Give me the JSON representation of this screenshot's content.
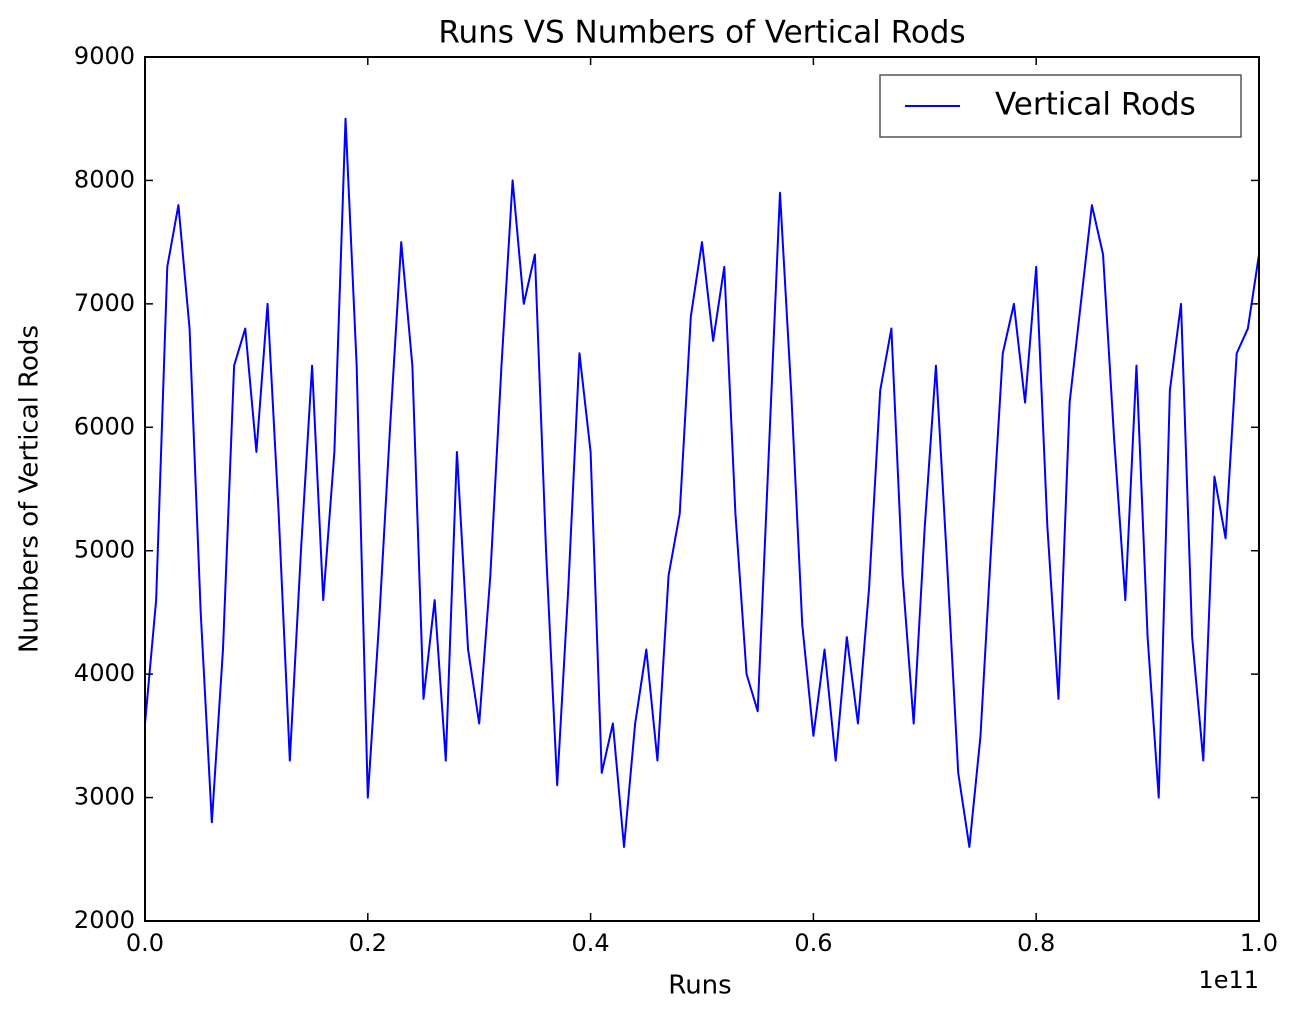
{
  "chart_data": {
    "type": "line",
    "title": "Runs VS Numbers of Vertical Rods",
    "xlabel": "Runs",
    "ylabel": "Numbers of Vertical Rods",
    "x_offset_label": "1e11",
    "x": [
      0,
      1000000000.0,
      2000000000.0,
      3000000000.0,
      4000000000.0,
      5000000000.0,
      6000000000.0,
      7000000000.0,
      8000000000.0,
      9000000000.0,
      10000000000.0,
      11000000000.0,
      12000000000.0,
      13000000000.0,
      14000000000.0,
      15000000000.0,
      16000000000.0,
      17000000000.0,
      18000000000.0,
      19000000000.0,
      20000000000.0,
      21000000000.0,
      22000000000.0,
      23000000000.0,
      24000000000.0,
      25000000000.0,
      26000000000.0,
      27000000000.0,
      28000000000.0,
      29000000000.0,
      30000000000.0,
      31000000000.0,
      32000000000.0,
      33000000000.0,
      34000000000.0,
      35000000000.0,
      36000000000.0,
      37000000000.0,
      38000000000.0,
      39000000000.0,
      40000000000.0,
      41000000000.0,
      42000000000.0,
      43000000000.0,
      44000000000.0,
      45000000000.0,
      46000000000.0,
      47000000000.0,
      48000000000.0,
      49000000000.0,
      50000000000.0,
      51000000000.0,
      52000000000.0,
      53000000000.0,
      54000000000.0,
      55000000000.0,
      56000000000.0,
      57000000000.0,
      58000000000.0,
      59000000000.0,
      60000000000.0,
      61000000000.0,
      62000000000.0,
      63000000000.0,
      64000000000.0,
      65000000000.0,
      66000000000.0,
      67000000000.0,
      68000000000.0,
      69000000000.0,
      70000000000.0,
      71000000000.0,
      72000000000.0,
      73000000000.0,
      74000000000.0,
      75000000000.0,
      76000000000.0,
      77000000000.0,
      78000000000.0,
      79000000000.0,
      80000000000.0,
      81000000000.0,
      82000000000.0,
      83000000000.0,
      84000000000.0,
      85000000000.0,
      86000000000.0,
      87000000000.0,
      88000000000.0,
      89000000000.0,
      90000000000.0,
      91000000000.0,
      92000000000.0,
      93000000000.0,
      94000000000.0,
      95000000000.0,
      96000000000.0,
      97000000000.0,
      98000000000.0,
      99000000000.0,
      100000000000.0
    ],
    "series": [
      {
        "name": "Vertical Rods",
        "color": "#0000ff",
        "values": [
          3600,
          4600,
          7300,
          7800,
          6800,
          4500,
          2800,
          4200,
          6500,
          6800,
          5800,
          7000,
          5300,
          3300,
          5000,
          6500,
          4600,
          5800,
          8500,
          6500,
          3000,
          4400,
          6000,
          7500,
          6500,
          3800,
          4600,
          3300,
          5800,
          4200,
          3600,
          4800,
          6500,
          8000,
          7000,
          7400,
          5000,
          3100,
          4700,
          6600,
          5800,
          3200,
          3600,
          2600,
          3600,
          4200,
          3300,
          4800,
          5300,
          6900,
          7500,
          6700,
          7300,
          5300,
          4000,
          3700,
          5800,
          7900,
          6300,
          4400,
          3500,
          4200,
          3300,
          4300,
          3600,
          4700,
          6300,
          6800,
          4800,
          3600,
          5200,
          6500,
          4900,
          3200,
          2600,
          3500,
          5100,
          6600,
          7000,
          6200,
          7300,
          5200,
          3800,
          6200,
          7000,
          7800,
          7400,
          5900,
          4600,
          6500,
          4300,
          3000,
          6300,
          7000,
          4300,
          3300,
          5600,
          5100,
          6600,
          6800,
          7400
        ]
      }
    ],
    "xlim": [
      0,
      100000000000.0
    ],
    "ylim": [
      2000,
      9000
    ],
    "xticks": [
      {
        "value": 0,
        "label": "0.0"
      },
      {
        "value": 20000000000.0,
        "label": "0.2"
      },
      {
        "value": 40000000000.0,
        "label": "0.4"
      },
      {
        "value": 60000000000.0,
        "label": "0.6"
      },
      {
        "value": 80000000000.0,
        "label": "0.8"
      },
      {
        "value": 100000000000.0,
        "label": "1.0"
      }
    ],
    "yticks": [
      2000,
      3000,
      4000,
      5000,
      6000,
      7000,
      8000,
      9000
    ],
    "legend": "upper right"
  }
}
